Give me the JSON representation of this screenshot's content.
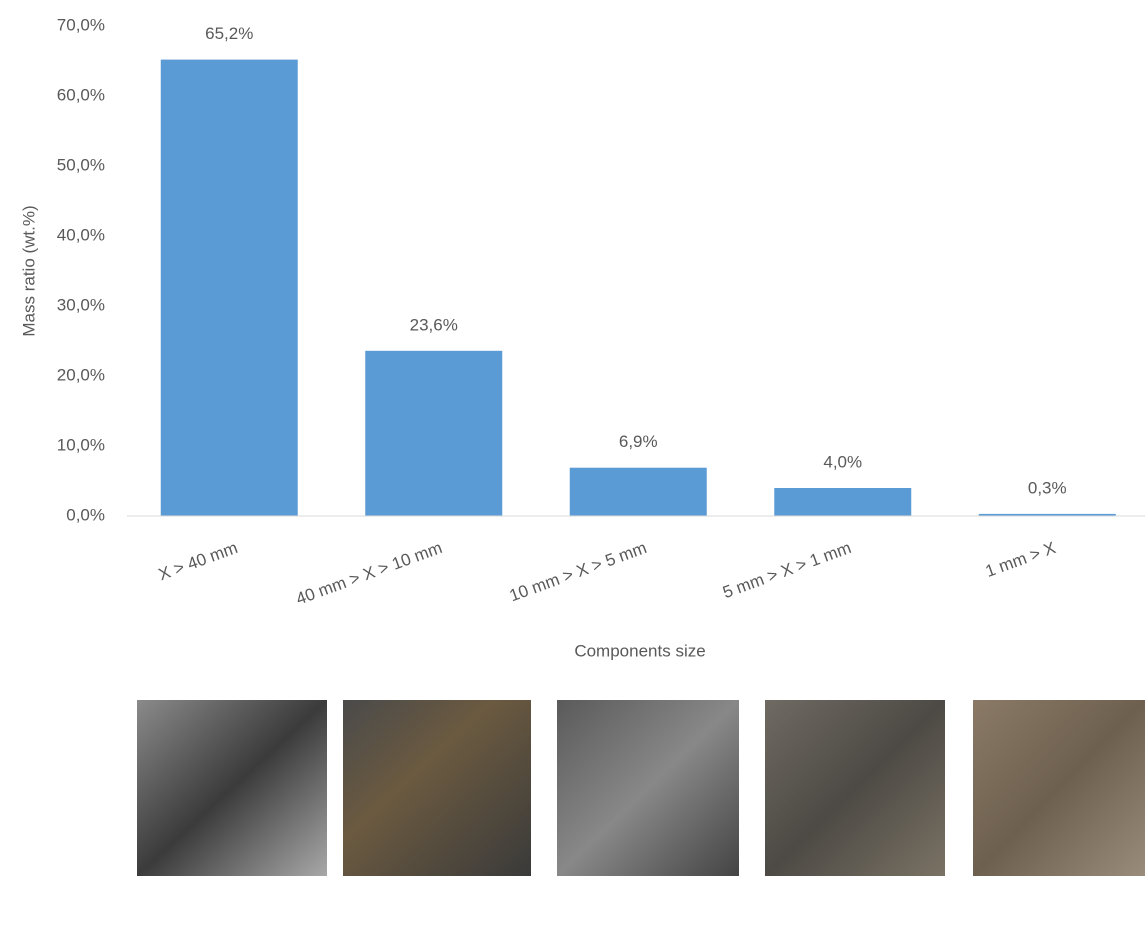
{
  "chart_data": {
    "type": "bar",
    "x_label": "Components size",
    "y_label": "Mass ratio (wt.%)",
    "categories": [
      "X > 40 mm",
      "40 mm > X > 10 mm",
      "10 mm > X > 5 mm",
      "5 mm > X > 1 mm",
      "1 mm > X"
    ],
    "values": [
      65.2,
      23.6,
      6.9,
      4.0,
      0.3
    ],
    "value_labels": [
      "65,2%",
      "23,6%",
      "6,9%",
      "4,0%",
      "0,3%"
    ],
    "color": "#5b9bd5",
    "ylim": [
      0,
      70
    ],
    "yticks": [
      {
        "value": 0,
        "label": "0,0%"
      },
      {
        "value": 10,
        "label": "10,0%"
      },
      {
        "value": 20,
        "label": "20,0%"
      },
      {
        "value": 30,
        "label": "30,0%"
      },
      {
        "value": 40,
        "label": "40,0%"
      },
      {
        "value": 50,
        "label": "50,0%"
      },
      {
        "value": 60,
        "label": "60,0%"
      },
      {
        "value": 70,
        "label": "70,0%"
      }
    ],
    "grid": false
  }
}
